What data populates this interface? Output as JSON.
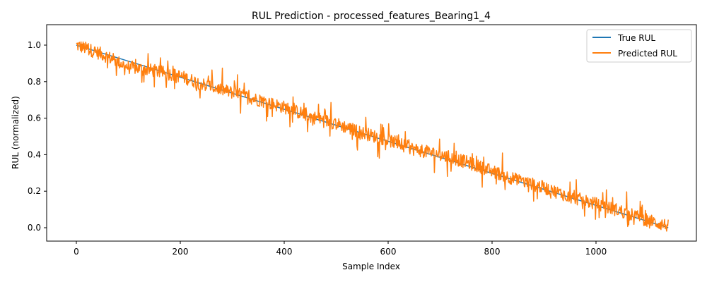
{
  "chart_data": {
    "type": "line",
    "title": "RUL Prediction - processed_features_Bearing1_4",
    "xlabel": "Sample Index",
    "ylabel": "RUL (normalized)",
    "xlim": [
      -30,
      1195
    ],
    "ylim": [
      -0.075,
      1.11
    ],
    "xticks": [
      0,
      200,
      400,
      600,
      800,
      1000
    ],
    "xtick_labels": [
      "0",
      "200",
      "400",
      "600",
      "800",
      "1000"
    ],
    "yticks": [
      0.0,
      0.2,
      0.4,
      0.6,
      0.8,
      1.0
    ],
    "ytick_labels": [
      "0.0",
      "0.2",
      "0.4",
      "0.6",
      "0.8",
      "1.0"
    ],
    "grid": false,
    "legend_position": "upper right",
    "n_samples": 1140,
    "series": [
      {
        "name": "True RUL",
        "color": "#1f77b4",
        "x": [
          0,
          1139
        ],
        "values": [
          1.0,
          0.0
        ],
        "description": "linear decrease from 1.0 to 0.0"
      },
      {
        "name": "Predicted RUL",
        "color": "#ff7f0e",
        "x": [
          0,
          50,
          100,
          150,
          200,
          250,
          300,
          350,
          400,
          450,
          500,
          550,
          600,
          650,
          700,
          750,
          800,
          850,
          900,
          950,
          1000,
          1050,
          1100,
          1139
        ],
        "values": [
          1.0,
          0.95,
          0.88,
          0.86,
          0.83,
          0.78,
          0.74,
          0.7,
          0.66,
          0.61,
          0.57,
          0.52,
          0.48,
          0.43,
          0.4,
          0.36,
          0.31,
          0.26,
          0.22,
          0.17,
          0.13,
          0.09,
          0.04,
          0.01
        ],
        "noise_amplitude": 0.06,
        "description": "noisy prediction tracking true RUL"
      }
    ]
  }
}
